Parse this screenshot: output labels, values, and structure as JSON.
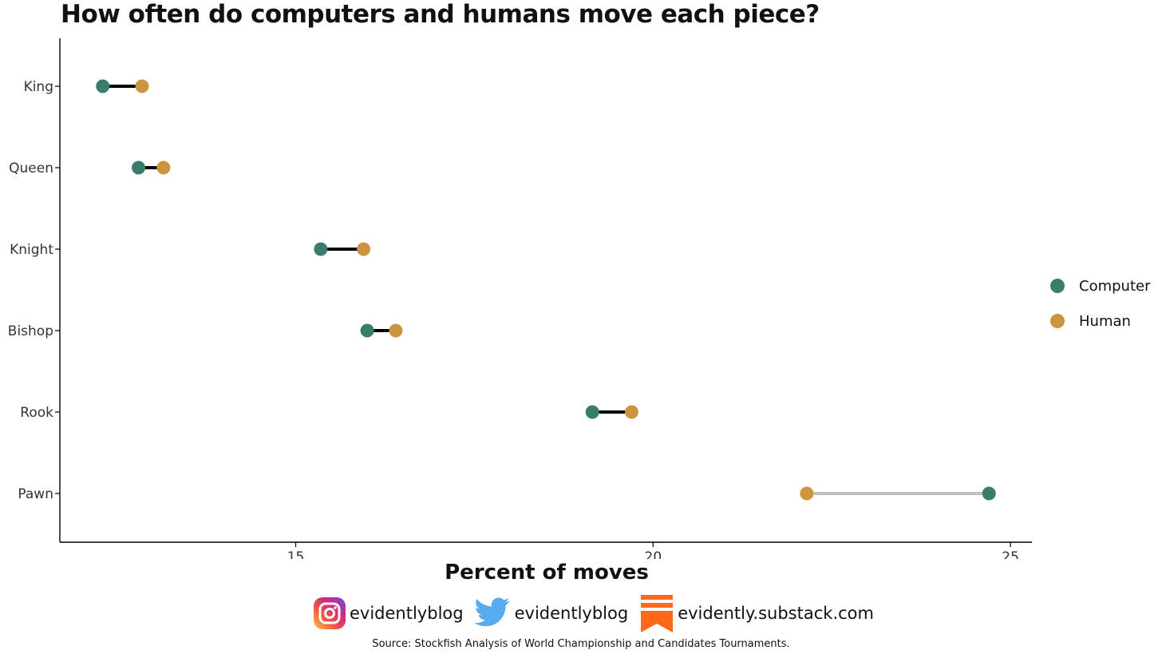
{
  "colors": {
    "computer": "#3a7d6e",
    "human": "#cc943e",
    "segment_human_greater": "#000000",
    "segment_computer_greater": "#c0c0c0",
    "axis": "#000000",
    "text": "#111111",
    "substack": "#ff6719",
    "twitter": "#55acee"
  },
  "chart_data": {
    "type": "dumbbell",
    "title": "How often do computers and humans move each piece?",
    "xlabel": "Percent of moves",
    "ylabel": "",
    "xlim": [
      11.7,
      25.3
    ],
    "xticks": [
      15,
      20,
      25
    ],
    "categories": [
      "King",
      "Queen",
      "Knight",
      "Bishop",
      "Rook",
      "Pawn"
    ],
    "series": [
      {
        "name": "Computer",
        "values": [
          12.3,
          12.8,
          15.35,
          16.0,
          19.15,
          24.7
        ]
      },
      {
        "name": "Human",
        "values": [
          12.85,
          13.15,
          15.95,
          16.4,
          19.7,
          22.15
        ]
      }
    ],
    "legend_position": "right",
    "grid": false
  },
  "social": {
    "instagram_handle": "evidentlyblog",
    "twitter_handle": "evidentlyblog",
    "substack_url": "evidently.substack.com",
    "instagram_icon": "instagram-icon",
    "twitter_icon": "twitter-bird-icon",
    "substack_icon": "substack-icon"
  },
  "source": "Source: Stockfish Analysis of World Championship and Candidates Tournaments."
}
